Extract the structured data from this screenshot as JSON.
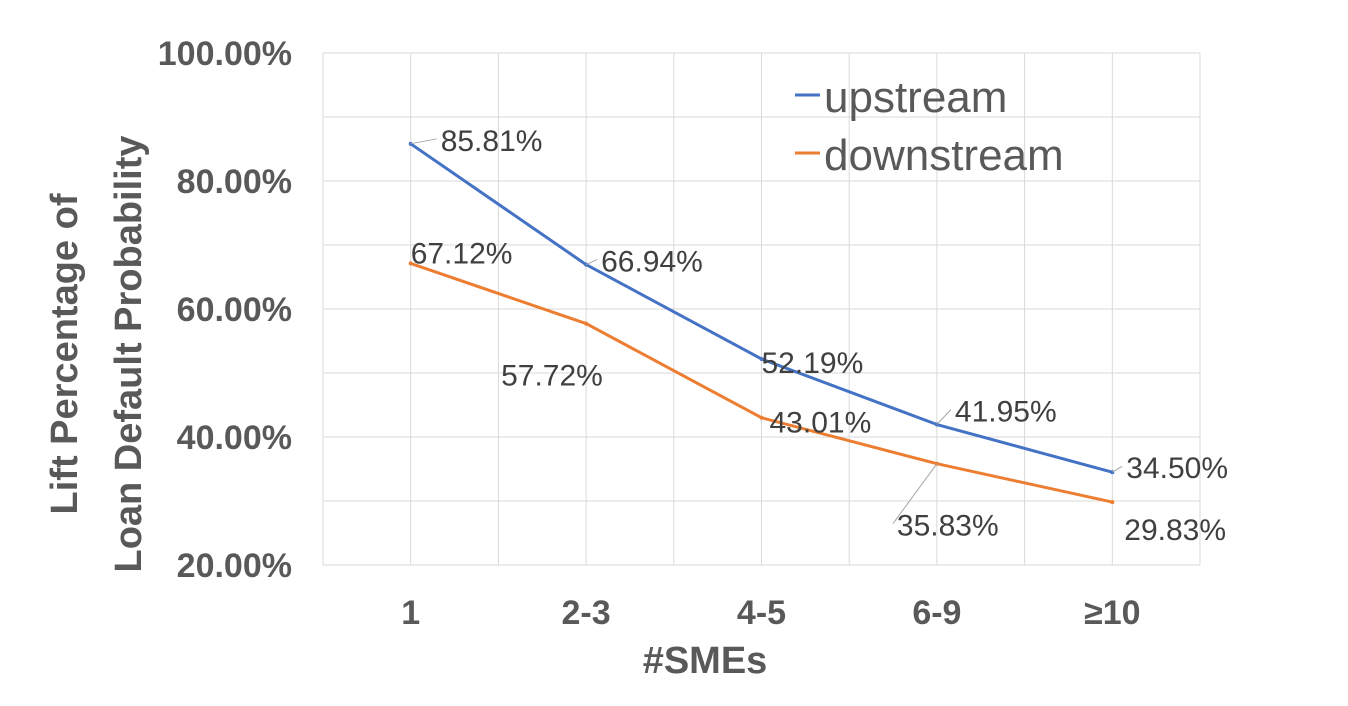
{
  "chart_data": {
    "type": "line",
    "categories": [
      "1",
      "2-3",
      "4-5",
      "6-9",
      "≥10"
    ],
    "series": [
      {
        "name": "upstream",
        "color": "#4472c4",
        "values": [
          85.81,
          66.94,
          52.19,
          41.95,
          34.5
        ],
        "labels": [
          "85.81%",
          "66.94%",
          "52.19%",
          "41.95%",
          "34.50%"
        ]
      },
      {
        "name": "downstream",
        "color": "#ed7d31",
        "values": [
          67.12,
          57.72,
          43.01,
          35.83,
          29.83
        ],
        "labels": [
          "67.12%",
          "57.72%",
          "43.01%",
          "35.83%",
          "29.83%"
        ]
      }
    ],
    "xlabel": "#SMEs",
    "ylabel_lines": [
      "Lift Percentage of",
      "Loan Default Probability"
    ],
    "ylim": [
      20,
      100
    ],
    "yticks": [
      "20.00%",
      "40.00%",
      "60.00%",
      "80.00%",
      "100.00%"
    ],
    "grid": true,
    "legend_position": "top-right"
  }
}
